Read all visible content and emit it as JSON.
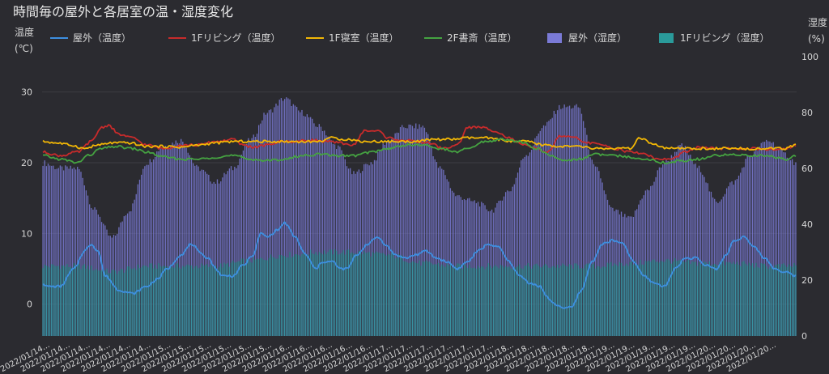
{
  "chart_data": {
    "type": "bar+line",
    "title": "時間毎の屋外と各居室の温・湿度変化",
    "y_left": {
      "label": "温度\n(℃)",
      "range": [
        -4.5,
        35
      ],
      "ticks": [
        0,
        10,
        20,
        30
      ]
    },
    "y_right": {
      "label": "湿度\n(%)",
      "range": [
        0,
        100
      ],
      "ticks": [
        0,
        20,
        40,
        60,
        80,
        100
      ]
    },
    "grid": true,
    "legend_position": "top",
    "colors": {
      "outdoor_temp": "#3d8fe0",
      "living_temp": "#c82b2b",
      "bedroom_temp": "#f2b705",
      "study_temp": "#45a341",
      "outdoor_humidity": "#7a7ad6",
      "living_humidity": "#2a9a9a",
      "background": "#2b2b30",
      "grid": "#3d3d43",
      "text": "#d6d6d6"
    },
    "series": [
      {
        "name": "屋外（温度）",
        "kind": "line",
        "axis": "left",
        "color": "#3d8fe0",
        "anchors": [
          [
            0,
            3
          ],
          [
            2,
            2.5
          ],
          [
            10,
            2.5
          ],
          [
            18,
            5
          ],
          [
            24,
            7.5
          ],
          [
            28,
            8.5
          ],
          [
            32,
            7.5
          ],
          [
            36,
            4
          ],
          [
            44,
            2
          ],
          [
            52,
            1.5
          ],
          [
            60,
            2.5
          ],
          [
            66,
            3.5
          ],
          [
            72,
            5
          ],
          [
            80,
            7
          ],
          [
            86,
            8.5
          ],
          [
            92,
            7
          ],
          [
            96,
            6.5
          ],
          [
            100,
            5
          ],
          [
            104,
            4
          ],
          [
            110,
            4
          ],
          [
            116,
            5.5
          ],
          [
            122,
            7
          ],
          [
            126,
            10
          ],
          [
            130,
            9.5
          ],
          [
            136,
            10.5
          ],
          [
            140,
            11.5
          ],
          [
            146,
            9.5
          ],
          [
            152,
            7
          ],
          [
            158,
            5
          ],
          [
            162,
            6
          ],
          [
            168,
            6
          ],
          [
            172,
            5
          ],
          [
            176,
            5
          ],
          [
            182,
            7
          ],
          [
            188,
            8.5
          ],
          [
            194,
            9.5
          ],
          [
            198,
            8.5
          ],
          [
            204,
            7
          ],
          [
            210,
            6.5
          ],
          [
            216,
            7
          ],
          [
            222,
            7.5
          ],
          [
            228,
            6.5
          ],
          [
            234,
            6
          ],
          [
            240,
            5
          ],
          [
            246,
            6
          ],
          [
            252,
            7.5
          ],
          [
            258,
            8.5
          ],
          [
            264,
            8
          ],
          [
            270,
            6
          ],
          [
            276,
            4
          ],
          [
            282,
            3
          ],
          [
            288,
            2.5
          ],
          [
            292,
            1
          ],
          [
            296,
            0
          ],
          [
            302,
            -0.5
          ],
          [
            306,
            -0.5
          ],
          [
            312,
            2
          ],
          [
            318,
            6
          ],
          [
            324,
            8.5
          ],
          [
            330,
            9
          ],
          [
            336,
            8.5
          ],
          [
            342,
            6
          ],
          [
            348,
            4
          ],
          [
            354,
            3
          ],
          [
            360,
            2.5
          ],
          [
            366,
            5
          ],
          [
            372,
            6.5
          ],
          [
            378,
            6.5
          ],
          [
            384,
            5.5
          ],
          [
            390,
            5
          ],
          [
            396,
            7
          ],
          [
            400,
            9
          ],
          [
            406,
            9.5
          ],
          [
            412,
            8
          ],
          [
            418,
            6.5
          ],
          [
            424,
            5
          ],
          [
            430,
            4.5
          ],
          [
            436,
            4
          ]
        ]
      },
      {
        "name": "1Fリビング（温度）",
        "kind": "line",
        "axis": "left",
        "color": "#c82b2b",
        "anchors": [
          [
            0,
            21.5
          ],
          [
            10,
            21
          ],
          [
            20,
            21.5
          ],
          [
            28,
            23
          ],
          [
            34,
            25
          ],
          [
            38,
            25.3
          ],
          [
            44,
            24
          ],
          [
            52,
            23.5
          ],
          [
            60,
            22.5
          ],
          [
            70,
            22
          ],
          [
            80,
            22.5
          ],
          [
            90,
            22.5
          ],
          [
            100,
            23
          ],
          [
            110,
            23.3
          ],
          [
            116,
            22.5
          ],
          [
            122,
            22.2
          ],
          [
            130,
            22.5
          ],
          [
            138,
            23
          ],
          [
            146,
            23
          ],
          [
            156,
            23.2
          ],
          [
            164,
            23
          ],
          [
            172,
            22.8
          ],
          [
            180,
            22.5
          ],
          [
            186,
            24.5
          ],
          [
            194,
            24.5
          ],
          [
            200,
            23.5
          ],
          [
            208,
            23.2
          ],
          [
            216,
            23
          ],
          [
            224,
            22.8
          ],
          [
            232,
            22
          ],
          [
            240,
            22.5
          ],
          [
            246,
            25
          ],
          [
            254,
            25
          ],
          [
            262,
            24.5
          ],
          [
            270,
            23.5
          ],
          [
            278,
            22.5
          ],
          [
            286,
            22
          ],
          [
            292,
            21.5
          ],
          [
            300,
            23.8
          ],
          [
            308,
            23.5
          ],
          [
            316,
            22.8
          ],
          [
            324,
            22.5
          ],
          [
            332,
            22
          ],
          [
            340,
            21.5
          ],
          [
            348,
            21.3
          ],
          [
            356,
            20.5
          ],
          [
            364,
            20.5
          ],
          [
            372,
            21.5
          ],
          [
            380,
            22.2
          ],
          [
            390,
            22
          ],
          [
            400,
            22
          ],
          [
            410,
            22
          ],
          [
            420,
            21.8
          ],
          [
            430,
            22
          ],
          [
            436,
            22.5
          ]
        ]
      },
      {
        "name": "1F寝室（温度）",
        "kind": "line",
        "axis": "left",
        "color": "#f2b705",
        "anchors": [
          [
            0,
            23
          ],
          [
            8,
            22.8
          ],
          [
            16,
            22.5
          ],
          [
            24,
            22
          ],
          [
            32,
            22.5
          ],
          [
            40,
            22.8
          ],
          [
            50,
            22.8
          ],
          [
            60,
            22.3
          ],
          [
            70,
            22.3
          ],
          [
            80,
            22.2
          ],
          [
            90,
            22.5
          ],
          [
            100,
            22.8
          ],
          [
            110,
            23
          ],
          [
            120,
            23
          ],
          [
            130,
            23
          ],
          [
            140,
            23
          ],
          [
            150,
            23
          ],
          [
            160,
            23
          ],
          [
            166,
            23.5
          ],
          [
            176,
            23.3
          ],
          [
            186,
            23
          ],
          [
            196,
            23
          ],
          [
            206,
            23
          ],
          [
            216,
            23
          ],
          [
            226,
            23.3
          ],
          [
            236,
            23.3
          ],
          [
            246,
            23.5
          ],
          [
            256,
            23.5
          ],
          [
            264,
            23.3
          ],
          [
            272,
            23
          ],
          [
            280,
            23
          ],
          [
            290,
            22.5
          ],
          [
            300,
            22.3
          ],
          [
            310,
            22.3
          ],
          [
            320,
            22
          ],
          [
            330,
            22
          ],
          [
            340,
            22
          ],
          [
            346,
            23.5
          ],
          [
            354,
            22.5
          ],
          [
            362,
            22
          ],
          [
            370,
            22
          ],
          [
            380,
            22
          ],
          [
            390,
            22
          ],
          [
            400,
            22
          ],
          [
            410,
            22
          ],
          [
            420,
            22
          ],
          [
            430,
            22
          ],
          [
            436,
            22.5
          ]
        ]
      },
      {
        "name": "2F書斎（温度）",
        "kind": "line",
        "axis": "left",
        "color": "#45a341",
        "anchors": [
          [
            0,
            21
          ],
          [
            10,
            20.5
          ],
          [
            20,
            20
          ],
          [
            26,
            21
          ],
          [
            34,
            22
          ],
          [
            42,
            22.3
          ],
          [
            52,
            22
          ],
          [
            60,
            21.5
          ],
          [
            70,
            20.8
          ],
          [
            80,
            20.5
          ],
          [
            90,
            20.5
          ],
          [
            100,
            20.8
          ],
          [
            110,
            21
          ],
          [
            120,
            20.5
          ],
          [
            130,
            20.3
          ],
          [
            140,
            20.5
          ],
          [
            150,
            21
          ],
          [
            160,
            21.2
          ],
          [
            170,
            21
          ],
          [
            180,
            21
          ],
          [
            190,
            21.5
          ],
          [
            200,
            22
          ],
          [
            210,
            22.5
          ],
          [
            220,
            22.5
          ],
          [
            230,
            22
          ],
          [
            240,
            21.5
          ],
          [
            246,
            22
          ],
          [
            256,
            23
          ],
          [
            266,
            23.3
          ],
          [
            276,
            23
          ],
          [
            286,
            22
          ],
          [
            294,
            21
          ],
          [
            302,
            20.3
          ],
          [
            310,
            20.5
          ],
          [
            320,
            21.2
          ],
          [
            330,
            21
          ],
          [
            340,
            20.8
          ],
          [
            350,
            20.5
          ],
          [
            360,
            20
          ],
          [
            370,
            20.3
          ],
          [
            380,
            20.5
          ],
          [
            390,
            21
          ],
          [
            400,
            21.2
          ],
          [
            410,
            21
          ],
          [
            420,
            21
          ],
          [
            430,
            20.5
          ],
          [
            436,
            21
          ]
        ]
      },
      {
        "name": "屋外（湿度）",
        "kind": "bar",
        "axis": "right",
        "color": "#7a7ad6",
        "anchors": [
          [
            0,
            62
          ],
          [
            10,
            60
          ],
          [
            20,
            60
          ],
          [
            30,
            45
          ],
          [
            40,
            35
          ],
          [
            50,
            45
          ],
          [
            60,
            62
          ],
          [
            70,
            68
          ],
          [
            80,
            70
          ],
          [
            90,
            60
          ],
          [
            100,
            55
          ],
          [
            110,
            60
          ],
          [
            120,
            70
          ],
          [
            130,
            80
          ],
          [
            140,
            85
          ],
          [
            150,
            80
          ],
          [
            160,
            75
          ],
          [
            170,
            68
          ],
          [
            180,
            58
          ],
          [
            190,
            62
          ],
          [
            200,
            70
          ],
          [
            210,
            75
          ],
          [
            220,
            75
          ],
          [
            230,
            60
          ],
          [
            240,
            50
          ],
          [
            250,
            48
          ],
          [
            260,
            45
          ],
          [
            270,
            52
          ],
          [
            280,
            65
          ],
          [
            290,
            75
          ],
          [
            300,
            82
          ],
          [
            310,
            82
          ],
          [
            320,
            60
          ],
          [
            330,
            45
          ],
          [
            340,
            42
          ],
          [
            350,
            52
          ],
          [
            360,
            62
          ],
          [
            370,
            68
          ],
          [
            380,
            60
          ],
          [
            390,
            48
          ],
          [
            400,
            55
          ],
          [
            410,
            65
          ],
          [
            420,
            70
          ],
          [
            430,
            65
          ],
          [
            436,
            62
          ]
        ]
      },
      {
        "name": "1Fリビング（湿度）",
        "kind": "bar",
        "axis": "right",
        "color": "#2a9a9a",
        "anchors": [
          [
            0,
            25
          ],
          [
            20,
            25
          ],
          [
            40,
            23
          ],
          [
            60,
            25
          ],
          [
            80,
            25
          ],
          [
            100,
            25
          ],
          [
            120,
            27
          ],
          [
            140,
            29
          ],
          [
            160,
            30
          ],
          [
            180,
            30
          ],
          [
            200,
            29
          ],
          [
            220,
            26
          ],
          [
            240,
            25
          ],
          [
            260,
            25
          ],
          [
            280,
            25
          ],
          [
            300,
            25
          ],
          [
            320,
            25
          ],
          [
            340,
            26
          ],
          [
            360,
            27
          ],
          [
            380,
            26
          ],
          [
            400,
            26
          ],
          [
            420,
            25
          ],
          [
            436,
            25
          ]
        ]
      }
    ],
    "x_axis": {
      "count": 437,
      "tick_labels": [
        "2022/01/14...",
        "2022/01/14...",
        "2022/01/14...",
        "2022/01/14...",
        "2022/01/14...",
        "2022/01/14...",
        "2022/01/15...",
        "2022/01/15...",
        "2022/01/15...",
        "2022/01/15...",
        "2022/01/15...",
        "2022/01/15...",
        "2022/01/16...",
        "2022/01/16...",
        "2022/01/16...",
        "2022/01/16...",
        "2022/01/16...",
        "2022/01/17...",
        "2022/01/17...",
        "2022/01/17...",
        "2022/01/17...",
        "2022/01/17...",
        "2022/01/17...",
        "2022/01/18...",
        "2022/01/18...",
        "2022/01/18...",
        "2022/01/18...",
        "2022/01/18...",
        "2022/01/19...",
        "2022/01/19...",
        "2022/01/19...",
        "2022/01/19...",
        "2022/01/19...",
        "2022/01/20...",
        "2022/01/20...",
        "2022/01/20...",
        "2022/01/20..."
      ]
    }
  }
}
